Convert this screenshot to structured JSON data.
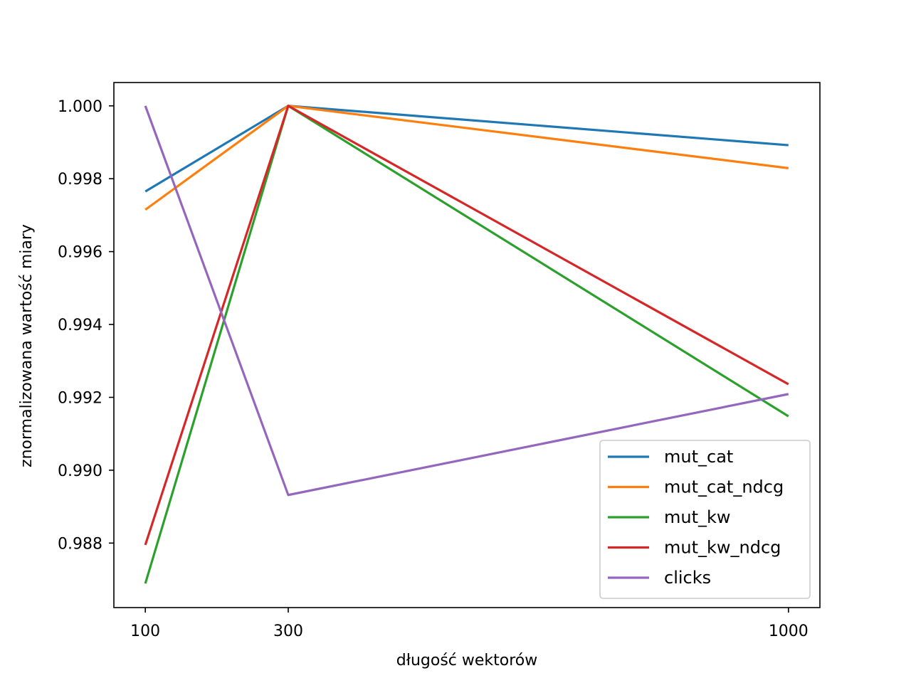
{
  "chart_data": {
    "type": "line",
    "xlabel": "długość wektorów",
    "ylabel": "znormalizowana wartość miary",
    "x": [
      100,
      300,
      1000
    ],
    "x_ticks": [
      100,
      300,
      1000
    ],
    "x_tick_labels": [
      "100",
      "300",
      "1000"
    ],
    "xlim": [
      56,
      1044
    ],
    "y_ticks": [
      0.988,
      0.99,
      0.992,
      0.994,
      0.996,
      0.998,
      1.0
    ],
    "y_tick_labels": [
      "0.988",
      "0.990",
      "0.992",
      "0.994",
      "0.996",
      "0.998",
      "1.000"
    ],
    "ylim": [
      0.98623,
      1.00064
    ],
    "grid": false,
    "legend_position": "lower right",
    "series": [
      {
        "name": "mut_cat",
        "color": "#1f77b4",
        "values": [
          0.99765,
          1.0,
          0.99892
        ]
      },
      {
        "name": "mut_cat_ndcg",
        "color": "#ff7f0e",
        "values": [
          0.99715,
          1.0,
          0.99829
        ]
      },
      {
        "name": "mut_kw",
        "color": "#2ca02c",
        "values": [
          0.98689,
          1.0,
          0.99148
        ]
      },
      {
        "name": "mut_kw_ndcg",
        "color": "#d62728",
        "values": [
          0.98795,
          1.0,
          0.99236
        ]
      },
      {
        "name": "clicks",
        "color": "#9467bd",
        "values": [
          1.0,
          0.98932,
          0.99209
        ]
      }
    ]
  }
}
